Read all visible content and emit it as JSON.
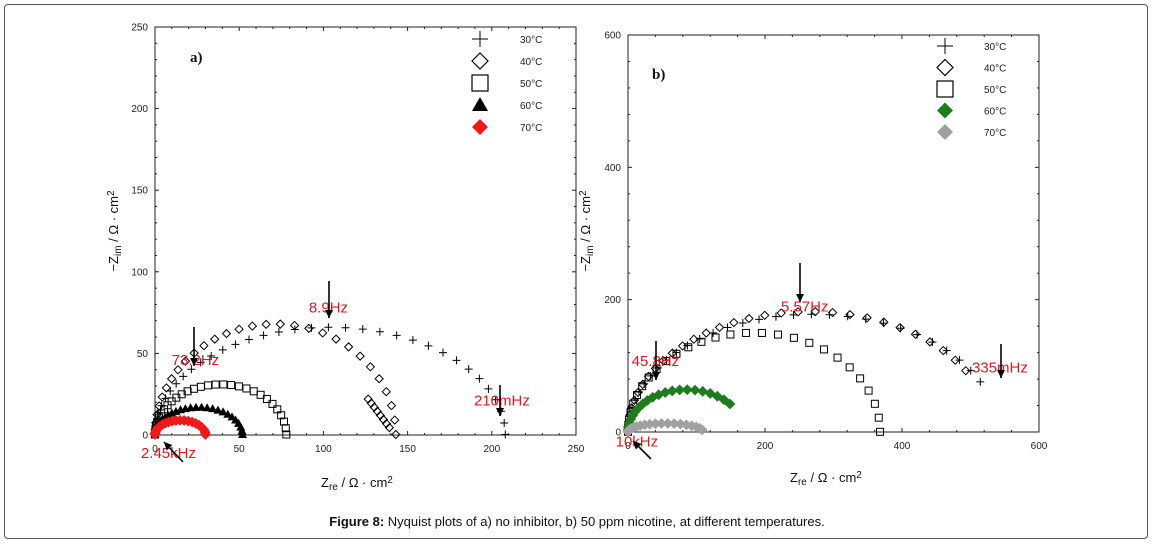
{
  "caption": {
    "label": "Figure 8:",
    "text": " Nyquist plots of a) no inhibitor, b) 50 ppm nicotine, at different temperatures."
  },
  "chart_data": [
    {
      "type": "scatter",
      "panel_label": "a)",
      "xlabel": "Zre / Ω · cm2",
      "ylabel": "−Zim / Ω · cm2",
      "xlim": [
        0,
        250
      ],
      "ylim": [
        0,
        250
      ],
      "xticks": [
        "0",
        "50",
        "100",
        "150",
        "200",
        "250"
      ],
      "yticks": [
        "0",
        "50",
        "100",
        "150",
        "200",
        "250"
      ],
      "legend_position": "top-right",
      "series": [
        {
          "name": "30°C",
          "marker": "plus",
          "color": "#000000",
          "hf": 0,
          "Rct": 208,
          "peak": 66,
          "n": 36
        },
        {
          "name": "40°C",
          "marker": "diamond-open",
          "color": "#000000",
          "hf": 0,
          "Rct": 143,
          "peak": 68,
          "n": 30,
          "hook": 8
        },
        {
          "name": "50°C",
          "marker": "square-open",
          "color": "#000000",
          "hf": 0,
          "Rct": 78,
          "peak": 31,
          "n": 30
        },
        {
          "name": "60°C",
          "marker": "triangle-filled",
          "color": "#000000",
          "hf": 0,
          "Rct": 52,
          "peak": 17,
          "n": 28
        },
        {
          "name": "70°C",
          "marker": "diamond-filled",
          "color": "#ee1a1a",
          "hf": 0,
          "Rct": 30,
          "peak": 9,
          "n": 22
        }
      ],
      "annotations": [
        {
          "text": "73.2Hz",
          "x": 24,
          "y": 43
        },
        {
          "text": "8.9Hz",
          "x": 103,
          "y": 75
        },
        {
          "text": "210mHz",
          "x": 206,
          "y": 18
        },
        {
          "text": "2.45kHz",
          "x": 8,
          "y": -14
        }
      ]
    },
    {
      "type": "scatter",
      "panel_label": "b)",
      "xlabel": "Zre / Ω · cm2",
      "ylabel": "−Zim / Ω · cm2",
      "xlim": [
        0,
        600
      ],
      "ylim": [
        0,
        600
      ],
      "xticks": [
        "0",
        "200",
        "400",
        "600"
      ],
      "yticks": [
        "0",
        "200",
        "400",
        "600"
      ],
      "legend_position": "top-right",
      "series": [
        {
          "name": "30°C",
          "marker": "plus",
          "color": "#000000",
          "hf": 0,
          "Rct": 540,
          "peak": 178,
          "n": 32,
          "trunc": 0.14
        },
        {
          "name": "40°C",
          "marker": "diamond-open",
          "color": "#000000",
          "hf": 0,
          "Rct": 530,
          "peak": 182,
          "n": 32,
          "trunc": 0.17
        },
        {
          "name": "50°C",
          "marker": "square-open",
          "color": "#000000",
          "hf": 0,
          "Rct": 368,
          "peak": 150,
          "n": 28
        },
        {
          "name": "60°C",
          "marker": "diamond-filled",
          "color": "#1e7b1e",
          "hf": 0,
          "Rct": 170,
          "peak": 64,
          "n": 22,
          "trunc": 0.23
        },
        {
          "name": "70°C",
          "marker": "diamond-filled",
          "color": "#a0a0a0",
          "hf": 0,
          "Rct": 110,
          "peak": 13,
          "n": 20,
          "trunc": 0.08
        }
      ],
      "annotations": [
        {
          "text": "45.8Hz",
          "x": 40,
          "y": 100
        },
        {
          "text": "5.57Hz",
          "x": 258,
          "y": 182
        },
        {
          "text": "335mHz",
          "x": 543,
          "y": 90
        },
        {
          "text": "10kHz",
          "x": 13,
          "y": -22
        }
      ]
    }
  ]
}
